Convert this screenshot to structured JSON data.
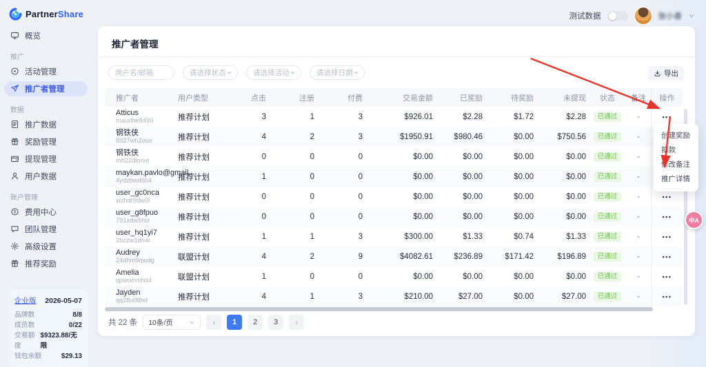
{
  "colors": {
    "accent": "#3e7bfa",
    "brand_blue": "#2e62f6",
    "sidebar_active_bg": "#dce3fa",
    "success_text": "#68c24a",
    "success_bg": "#eaf7e2",
    "annotation_arrow": "#e8352b",
    "float_button": "#ef7fa0"
  },
  "brand": {
    "part1": "Partner",
    "part2": "Share"
  },
  "topbar": {
    "test_label": "测试数据",
    "toggle_state": "off",
    "username": "张小善"
  },
  "sidebar": {
    "groups": [
      {
        "label": "",
        "items": [
          {
            "icon": "monitor-icon",
            "label": "概览",
            "active": false
          }
        ]
      },
      {
        "label": "推广",
        "items": [
          {
            "icon": "target-icon",
            "label": "活动管理",
            "active": false
          },
          {
            "icon": "send-icon",
            "label": "推广者管理",
            "active": true
          }
        ]
      },
      {
        "label": "数据",
        "items": [
          {
            "icon": "doc-icon",
            "label": "推广数据",
            "active": false
          },
          {
            "icon": "gift-icon",
            "label": "奖励管理",
            "active": false
          },
          {
            "icon": "wallet-icon",
            "label": "提现管理",
            "active": false
          },
          {
            "icon": "user-icon",
            "label": "用户数据",
            "active": false
          }
        ]
      },
      {
        "label": "账户管理",
        "items": [
          {
            "icon": "dollar-icon",
            "label": "费用中心",
            "active": false
          },
          {
            "icon": "chat-icon",
            "label": "团队管理",
            "active": false
          },
          {
            "icon": "gear-icon",
            "label": "高级设置",
            "active": false
          },
          {
            "icon": "gift-icon",
            "label": "推荐奖励",
            "active": false
          }
        ]
      }
    ]
  },
  "plan": {
    "name": "企业版",
    "expiry": "2026-05-07",
    "rows": [
      {
        "label": "品牌数",
        "value": "8/8"
      },
      {
        "label": "成员数",
        "value": "0/22"
      },
      {
        "label": "交易额度",
        "value": "$9323.88/无限"
      },
      {
        "label": "钱包余额",
        "value": "$29.13"
      }
    ]
  },
  "page": {
    "title": "推广者管理",
    "export_label": "导出"
  },
  "filters": {
    "keyword_placeholder": "用户名/邮箱",
    "selects": [
      "请选择状态",
      "请选择活动",
      "请选择日期"
    ]
  },
  "table": {
    "headers": [
      "推广者",
      "用户类型",
      "点击",
      "注册",
      "付费",
      "交易金额",
      "已奖励",
      "待奖励",
      "未提现",
      "状态",
      "备注",
      "操作"
    ],
    "rows": [
      {
        "name": "Atticus",
        "id": "maudhe8499",
        "type": "推荐计划",
        "clicks": "3",
        "regs": "1",
        "paid": "3",
        "amount": "$926.01",
        "rewarded": "$2.28",
        "pending": "$1.72",
        "unwithdrawn": "$2.28",
        "status": "已通过",
        "remark": "-",
        "actions": "•••"
      },
      {
        "name": "钢铁侠",
        "id": "8d27wh2oux",
        "type": "推荐计划",
        "clicks": "4",
        "regs": "2",
        "paid": "3",
        "amount": "$1950.91",
        "rewarded": "$980.46",
        "pending": "$0.00",
        "unwithdrawn": "$750.56",
        "status": "已通过",
        "remark": "-",
        "actions": "•••"
      },
      {
        "name": "钢铁侠",
        "id": "mh22diorxe",
        "type": "推荐计划",
        "clicks": "0",
        "regs": "0",
        "paid": "0",
        "amount": "$0.00",
        "rewarded": "$0.00",
        "pending": "$0.00",
        "unwithdrawn": "$0.00",
        "status": "已通过",
        "remark": "-",
        "actions": "•••"
      },
      {
        "name": "maykan.pavlo@gmail...",
        "id": "4ydzbwd6h4",
        "type": "推荐计划",
        "clicks": "1",
        "regs": "0",
        "paid": "0",
        "amount": "$0.00",
        "rewarded": "$0.00",
        "pending": "$0.00",
        "unwithdrawn": "$0.00",
        "status": "已通过",
        "remark": "-",
        "actions": "•••"
      },
      {
        "name": "user_gc0nca",
        "id": "wzhdr9dw0l",
        "type": "推荐计划",
        "clicks": "0",
        "regs": "0",
        "paid": "0",
        "amount": "$0.00",
        "rewarded": "$0.00",
        "pending": "$0.00",
        "unwithdrawn": "$0.00",
        "status": "已通过",
        "remark": "-",
        "actions": "•••"
      },
      {
        "name": "user_g8fpuo",
        "id": "791xdw5hiz",
        "type": "推荐计划",
        "clicks": "0",
        "regs": "0",
        "paid": "0",
        "amount": "$0.00",
        "rewarded": "$0.00",
        "pending": "$0.00",
        "unwithdrawn": "$0.00",
        "status": "已通过",
        "remark": "-",
        "actions": "•••"
      },
      {
        "name": "user_hq1yi7",
        "id": "2bzzw1dh4r",
        "type": "推荐计划",
        "clicks": "1",
        "regs": "1",
        "paid": "3",
        "amount": "$300.00",
        "rewarded": "$1.33",
        "pending": "$0.74",
        "unwithdrawn": "$1.33",
        "status": "已通过",
        "remark": "-",
        "actions": "•••"
      },
      {
        "name": "Audrey",
        "id": "24ohm9qwdg",
        "type": "联盟计划",
        "clicks": "4",
        "regs": "2",
        "paid": "9",
        "amount": "$4082.61",
        "rewarded": "$236.89",
        "pending": "$171.42",
        "unwithdrawn": "$196.89",
        "status": "已通过",
        "remark": "-",
        "actions": "•••"
      },
      {
        "name": "Amelia",
        "id": "qpwixhmhd4",
        "type": "联盟计划",
        "clicks": "1",
        "regs": "0",
        "paid": "0",
        "amount": "$0.00",
        "rewarded": "$0.00",
        "pending": "$0.00",
        "unwithdrawn": "$0.00",
        "status": "已通过",
        "remark": "-",
        "actions": "•••"
      },
      {
        "name": "Jayden",
        "id": "qq2flu08hd",
        "type": "推荐计划",
        "clicks": "4",
        "regs": "1",
        "paid": "3",
        "amount": "$210.00",
        "rewarded": "$27.00",
        "pending": "$0.00",
        "unwithdrawn": "$27.00",
        "status": "已通过",
        "remark": "-",
        "actions": "•••"
      }
    ]
  },
  "context_menu": {
    "items": [
      "创建奖励",
      "扣款",
      "修改备注",
      "推广详情"
    ]
  },
  "pagination": {
    "total": "共 22 条",
    "page_size": "10条/页",
    "prev": "‹",
    "next": "›",
    "pages": [
      "1",
      "2",
      "3"
    ],
    "active_page": "1"
  },
  "float_button": {
    "label": "中A"
  }
}
